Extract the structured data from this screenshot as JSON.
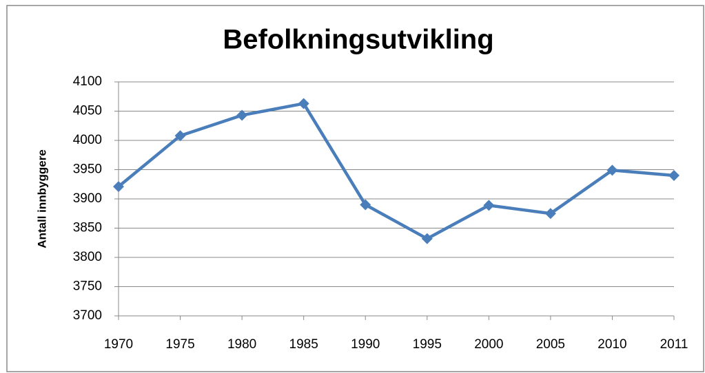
{
  "chart_data": {
    "type": "line",
    "title": "Befolkningsutvikling",
    "y_label": "Antall innbyggere",
    "categories": [
      "1970",
      "1975",
      "1980",
      "1985",
      "1990",
      "1995",
      "2000",
      "2005",
      "2010",
      "2011"
    ],
    "series": [
      {
        "color": "#4a7ebb",
        "values": [
          3921,
          4008,
          4043,
          4063,
          3890,
          3832,
          3889,
          3875,
          3949,
          3940
        ]
      }
    ],
    "ylim": [
      3700,
      4100
    ],
    "yticks": [
      3700,
      3750,
      3800,
      3850,
      3900,
      3950,
      4000,
      4050,
      4100
    ],
    "grid": true
  }
}
